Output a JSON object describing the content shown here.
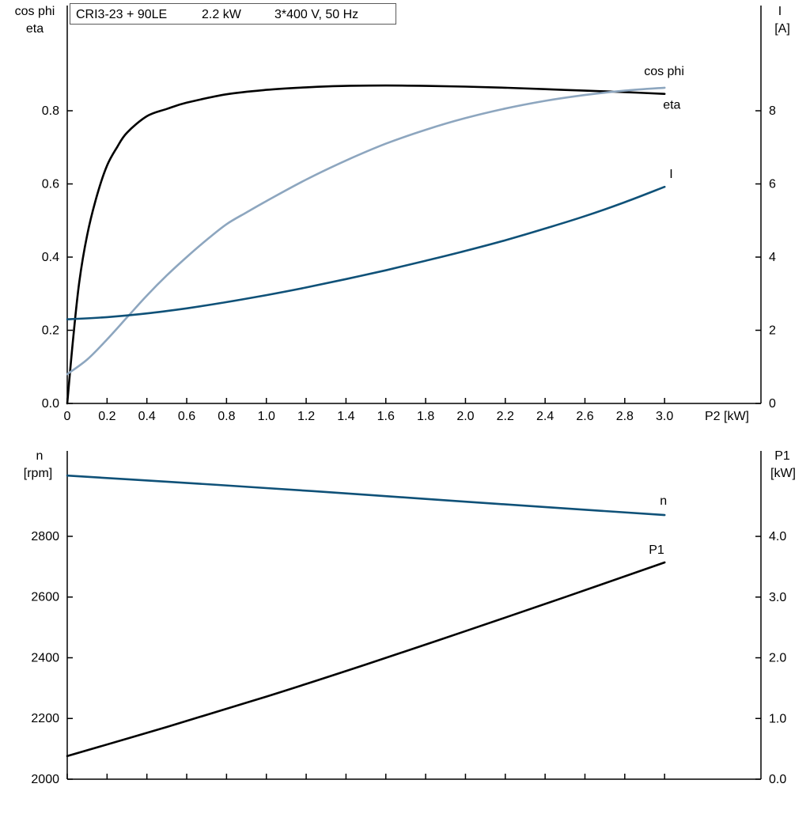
{
  "chart_data": [
    {
      "type": "line",
      "title": "CRI3-23 + 90LE   2.2 kW   3*400 V, 50 Hz",
      "title_parts": [
        "CRI3-23 + 90LE",
        "2.2 kW",
        "3*400 V, 50 Hz"
      ],
      "grid": false,
      "legend": "inline-labels",
      "x_axis": {
        "label": "P2 [kW]",
        "min": 0,
        "max": 3.0,
        "ticks": [
          0,
          0.2,
          0.4,
          0.6,
          0.8,
          1.0,
          1.2,
          1.4,
          1.6,
          1.8,
          2.0,
          2.2,
          2.4,
          2.6,
          2.8,
          3.0
        ],
        "tick_labels": [
          "0",
          "0.2",
          "0.4",
          "0.6",
          "0.8",
          "1.0",
          "1.2",
          "1.4",
          "1.6",
          "1.8",
          "2.0",
          "2.2",
          "2.4",
          "2.6",
          "2.8",
          "3.0"
        ],
        "show_tick_labels": true
      },
      "y_axis_left": {
        "label_lines": [
          "cos phi",
          "eta"
        ],
        "min": 0,
        "max": 0.8,
        "ticks": [
          0,
          0.2,
          0.4,
          0.6,
          0.8
        ],
        "tick_labels": [
          "0.0",
          "0.2",
          "0.4",
          "0.6",
          "0.8"
        ]
      },
      "y_axis_right": {
        "label_lines": [
          "I",
          "[A]"
        ],
        "min": 0,
        "max": 8,
        "ticks": [
          0,
          2,
          4,
          6,
          8
        ],
        "tick_labels": [
          "0",
          "2",
          "4",
          "6",
          "8"
        ]
      },
      "series": [
        {
          "name": "eta",
          "label": "eta",
          "axis": "left",
          "color": "#000000",
          "x": [
            0,
            0.03,
            0.06,
            0.1,
            0.15,
            0.2,
            0.25,
            0.3,
            0.4,
            0.5,
            0.6,
            0.8,
            1.0,
            1.2,
            1.4,
            1.6,
            1.8,
            2.0,
            2.2,
            2.4,
            2.6,
            2.8,
            3.0
          ],
          "y": [
            0,
            0.18,
            0.33,
            0.46,
            0.57,
            0.65,
            0.7,
            0.74,
            0.785,
            0.805,
            0.822,
            0.845,
            0.857,
            0.864,
            0.868,
            0.869,
            0.868,
            0.866,
            0.863,
            0.859,
            0.855,
            0.851,
            0.846
          ]
        },
        {
          "name": "cos phi",
          "label": "cos phi",
          "axis": "left",
          "color": "#8da6bf",
          "x": [
            0,
            0.1,
            0.2,
            0.3,
            0.4,
            0.5,
            0.6,
            0.7,
            0.8,
            0.9,
            1.0,
            1.2,
            1.4,
            1.6,
            1.8,
            2.0,
            2.2,
            2.4,
            2.6,
            2.8,
            3.0
          ],
          "y": [
            0.08,
            0.12,
            0.175,
            0.235,
            0.295,
            0.35,
            0.4,
            0.447,
            0.49,
            0.522,
            0.553,
            0.612,
            0.664,
            0.71,
            0.748,
            0.78,
            0.806,
            0.827,
            0.843,
            0.855,
            0.863
          ]
        },
        {
          "name": "I",
          "label": "I",
          "axis": "right",
          "color": "#0f5178",
          "x": [
            0,
            0.2,
            0.4,
            0.6,
            0.8,
            1.0,
            1.2,
            1.4,
            1.6,
            1.8,
            2.0,
            2.2,
            2.4,
            2.6,
            2.8,
            3.0
          ],
          "y": [
            2.3,
            2.36,
            2.46,
            2.6,
            2.77,
            2.96,
            3.17,
            3.4,
            3.64,
            3.9,
            4.17,
            4.46,
            4.78,
            5.12,
            5.5,
            5.92
          ]
        }
      ]
    },
    {
      "type": "line",
      "grid": false,
      "legend": "inline-labels",
      "x_axis": {
        "label": "",
        "min": 0,
        "max": 3.0,
        "ticks": [
          0,
          0.2,
          0.4,
          0.6,
          0.8,
          1.0,
          1.2,
          1.4,
          1.6,
          1.8,
          2.0,
          2.2,
          2.4,
          2.6,
          2.8,
          3.0
        ],
        "tick_labels": [],
        "show_tick_labels": false
      },
      "y_axis_left": {
        "label_lines": [
          "n",
          "[rpm]"
        ],
        "min": 2000,
        "max": 2800,
        "ticks": [
          2000,
          2200,
          2400,
          2600,
          2800
        ],
        "tick_labels": [
          "2000",
          "2200",
          "2400",
          "2600",
          "2800"
        ]
      },
      "y_axis_right": {
        "label_lines": [
          "P1",
          "[kW]"
        ],
        "min": 0,
        "max": 4.0,
        "ticks": [
          0,
          1,
          2,
          3,
          4
        ],
        "tick_labels": [
          "0.0",
          "1.0",
          "2.0",
          "3.0",
          "4.0"
        ]
      },
      "series": [
        {
          "name": "n",
          "label": "n",
          "axis": "left",
          "color": "#0f5178",
          "x": [
            0,
            0.5,
            1.0,
            1.5,
            2.0,
            2.5,
            3.0
          ],
          "y": [
            3000,
            2980,
            2959,
            2937,
            2914,
            2892,
            2870
          ]
        },
        {
          "name": "P1",
          "label": "P1",
          "axis": "right",
          "color": "#000000",
          "x": [
            0,
            0.5,
            1.0,
            1.5,
            2.0,
            2.5,
            3.0
          ],
          "y": [
            0.38,
            0.86,
            1.36,
            1.89,
            2.44,
            3.0,
            3.57
          ]
        }
      ]
    }
  ]
}
